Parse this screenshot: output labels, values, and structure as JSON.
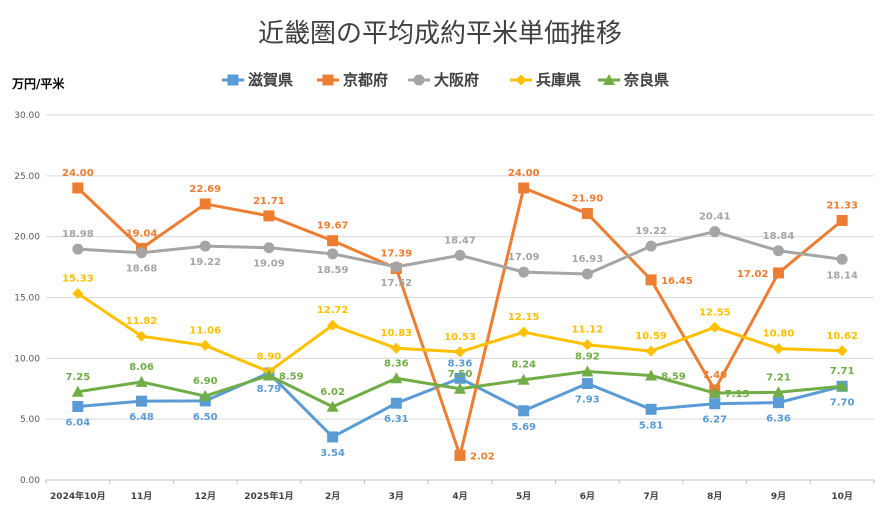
{
  "chart_data": {
    "type": "line",
    "title": "近畿圏の平均成約平米単価推移",
    "ylabel": "万円/平米",
    "xlabel": "",
    "ylim": [
      0,
      30
    ],
    "yticks": [
      "0.00",
      "5.00",
      "10.00",
      "15.00",
      "20.00",
      "25.00",
      "30.00"
    ],
    "categories": [
      "2024年10月",
      "11月",
      "12月",
      "2025年1月",
      "2月",
      "3月",
      "4月",
      "5月",
      "6月",
      "7月",
      "8月",
      "9月",
      "10月"
    ],
    "grid": true,
    "legend_position": "top",
    "series": [
      {
        "name": "滋賀県",
        "color": "#5B9BD5",
        "marker": "square",
        "values": [
          6.04,
          6.48,
          6.5,
          8.79,
          3.54,
          6.31,
          8.36,
          5.69,
          7.93,
          5.81,
          6.27,
          6.36,
          7.7
        ],
        "labels": [
          "6.04",
          "6.48",
          "6.50",
          "8.79",
          "3.54",
          "6.31",
          "8.36",
          "5.69",
          "7.93",
          "5.81",
          "6.27",
          "6.36",
          "7.70"
        ],
        "label_pos": [
          "below",
          "below",
          "below",
          "below",
          "below",
          "below",
          "above",
          "below",
          "below",
          "below",
          "below",
          "below",
          "below"
        ]
      },
      {
        "name": "京都府",
        "color": "#ED7D31",
        "marker": "square",
        "values": [
          24.0,
          19.04,
          22.69,
          21.71,
          19.67,
          17.39,
          2.02,
          24.0,
          21.9,
          16.45,
          7.4,
          17.02,
          21.33
        ],
        "labels": [
          "24.00",
          "19.04",
          "22.69",
          "21.71",
          "19.67",
          "17.39",
          "2.02",
          "24.00",
          "21.90",
          "16.45",
          "7.40",
          "17.02",
          "21.33"
        ],
        "label_pos": [
          "above",
          "above",
          "above",
          "above",
          "above",
          "above",
          "right",
          "above",
          "above",
          "right",
          "above",
          "left",
          "above"
        ]
      },
      {
        "name": "大阪府",
        "color": "#A5A5A5",
        "marker": "circle",
        "values": [
          18.98,
          18.68,
          19.22,
          19.09,
          18.59,
          17.52,
          18.47,
          17.09,
          16.93,
          19.22,
          20.41,
          18.84,
          18.14
        ],
        "labels": [
          "18.98",
          "18.68",
          "19.22",
          "19.09",
          "18.59",
          "17.52",
          "18.47",
          "17.09",
          "16.93",
          "19.22",
          "20.41",
          "18.84",
          "18.14"
        ],
        "label_pos": [
          "above",
          "below",
          "below",
          "below",
          "below",
          "below",
          "above",
          "above",
          "above",
          "above",
          "above",
          "above",
          "below"
        ]
      },
      {
        "name": "兵庫県",
        "color": "#FFC000",
        "marker": "diamond",
        "values": [
          15.33,
          11.82,
          11.06,
          8.9,
          12.72,
          10.83,
          10.53,
          12.15,
          11.12,
          10.59,
          12.55,
          10.8,
          10.62
        ],
        "labels": [
          "15.33",
          "11.82",
          "11.06",
          "8.90",
          "12.72",
          "10.83",
          "10.53",
          "12.15",
          "11.12",
          "10.59",
          "12.55",
          "10.80",
          "10.62"
        ],
        "label_pos": [
          "above",
          "above",
          "above",
          "above",
          "above",
          "above",
          "above",
          "above",
          "above",
          "above",
          "above",
          "above",
          "above"
        ]
      },
      {
        "name": "奈良県",
        "color": "#70AD47",
        "marker": "triangle",
        "values": [
          7.25,
          8.06,
          6.9,
          8.59,
          6.02,
          8.36,
          7.5,
          8.24,
          8.92,
          8.59,
          7.15,
          7.21,
          7.71
        ],
        "labels": [
          "7.25",
          "8.06",
          "6.90",
          "8.59",
          "6.02",
          "8.36",
          "7.50",
          "8.24",
          "8.92",
          "8.59",
          "7.15",
          "7.21",
          "7.71"
        ],
        "label_pos": [
          "above",
          "above",
          "above",
          "right",
          "above",
          "above",
          "above",
          "above",
          "above",
          "right",
          "right",
          "above",
          "above"
        ]
      }
    ]
  }
}
